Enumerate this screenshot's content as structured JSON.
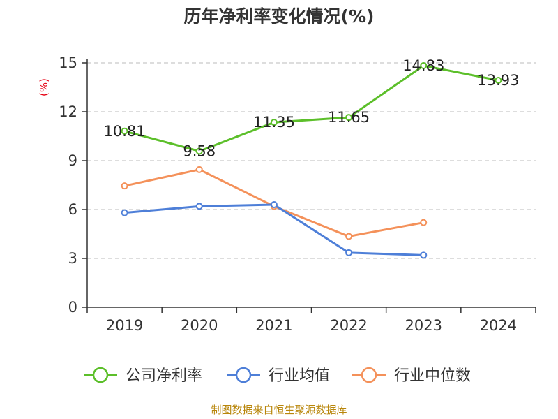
{
  "chart_data": {
    "type": "line",
    "title": "历年净利率变化情况(%)",
    "ylabel": "(%)",
    "categories": [
      "2019",
      "2020",
      "2021",
      "2022",
      "2023",
      "2024"
    ],
    "yticks": [
      "0",
      "3",
      "6",
      "9",
      "12",
      "15"
    ],
    "ylim": [
      0,
      15
    ],
    "grid": true,
    "legend_position": "bottom",
    "series": [
      {
        "name": "公司净利率",
        "color": "#5cbf2a",
        "values": [
          10.81,
          9.58,
          11.35,
          11.65,
          14.83,
          13.93
        ],
        "labels": [
          "10.81",
          "9.58",
          "11.35",
          "11.65",
          "14.83",
          "13.93"
        ]
      },
      {
        "name": "行业均值",
        "color": "#4e7fd8",
        "values": [
          5.8,
          6.2,
          6.3,
          3.35,
          3.2,
          null
        ]
      },
      {
        "name": "行业中位数",
        "color": "#f4915a",
        "values": [
          7.45,
          8.45,
          6.2,
          4.35,
          5.2,
          null
        ]
      }
    ]
  },
  "source": "制图数据来自恒生聚源数据库"
}
